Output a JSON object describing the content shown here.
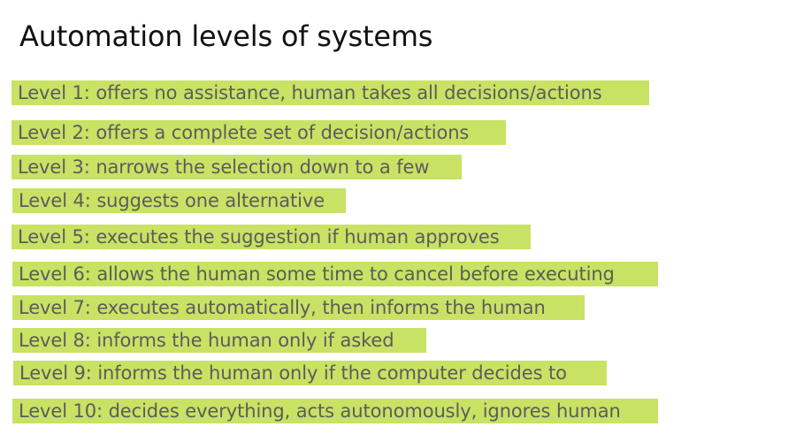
{
  "title": "Automation levels of systems",
  "highlight_color": "#c8e264",
  "levels": [
    {
      "label": "Level 1: offers no assistance, human takes all decisions/actions"
    },
    {
      "label": "Level 2: offers a complete set of decision/actions"
    },
    {
      "label": "Level 3: narrows the selection down to a few"
    },
    {
      "label": "Level 4: suggests one alternative"
    },
    {
      "label": "Level 5: executes the suggestion if human approves"
    },
    {
      "label": "Level 6: allows the human some time to cancel before executing"
    },
    {
      "label": "Level 7: executes automatically, then informs the human"
    },
    {
      "label": "Level 8: informs the human only if asked"
    },
    {
      "label": "Level 9: informs the human only if the computer decides to"
    },
    {
      "label": "Level 10: decides everything, acts autonomously, ignores human"
    }
  ]
}
